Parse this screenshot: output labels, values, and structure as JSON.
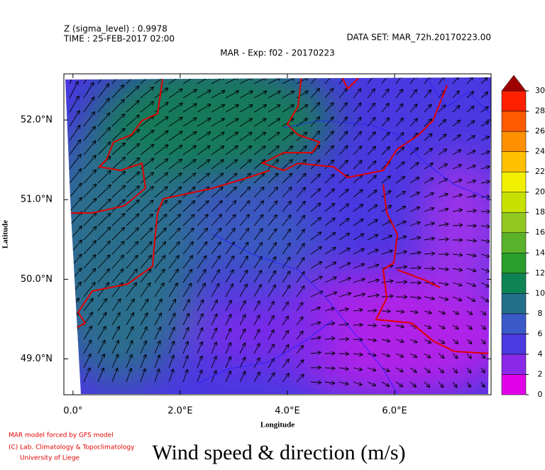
{
  "header": {
    "level": "Z (sigma_level) : 0.9978",
    "time": "TIME : 25-FEB-2017 02:00",
    "dataset": "DATA SET: MAR_72h.20170223.00",
    "experiment": "MAR - Exp: f02 - 20170223"
  },
  "map": {
    "xlabel": "Longitude",
    "ylabel": "Latitude",
    "xlim": [
      -0.17,
      7.8
    ],
    "ylim": [
      48.55,
      52.58
    ],
    "xticks": [
      {
        "value": 0,
        "label": "0.0°"
      },
      {
        "value": 2,
        "label": "2.0°E"
      },
      {
        "value": 4,
        "label": "4.0°E"
      },
      {
        "value": 6,
        "label": "6.0°E"
      }
    ],
    "yticks": [
      {
        "value": 52,
        "label": "52.0°N"
      },
      {
        "value": 51,
        "label": "51.0°N"
      },
      {
        "value": 50,
        "label": "50.0°N"
      },
      {
        "value": 49,
        "label": "49.0°N"
      }
    ]
  },
  "colorbar": {
    "ticks": [
      0,
      2,
      4,
      6,
      8,
      10,
      12,
      14,
      16,
      18,
      20,
      22,
      24,
      26,
      28,
      30
    ],
    "colors": [
      "#e000e8",
      "#8a2ae8",
      "#4a3ae0",
      "#3a5ac8",
      "#23708c",
      "#0e8454",
      "#2a9e2a",
      "#5ab22a",
      "#90c820",
      "#c8e000",
      "#f0f000",
      "#ffc000",
      "#ff9000",
      "#ff5a00",
      "#ff2000"
    ],
    "over_color": "#a00000"
  },
  "footer": {
    "credit1": "MAR model forced by GFS model",
    "credit2": "(C) Lab. Climatology & Topoclimatology",
    "credit3": "University of Liege",
    "title": "Wind speed & direction (m/s)"
  }
}
